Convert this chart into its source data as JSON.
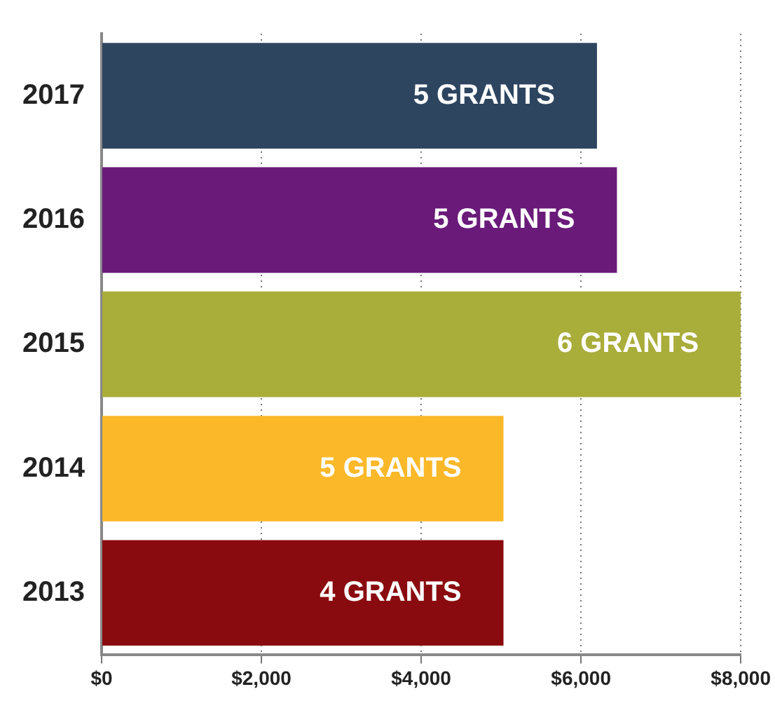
{
  "chart_data": {
    "type": "bar",
    "orientation": "horizontal",
    "categories": [
      "2017",
      "2016",
      "2015",
      "2014",
      "2013"
    ],
    "values": [
      6200,
      6450,
      8000,
      5030,
      5030
    ],
    "colors": [
      "#2e4560",
      "#6a1b7a",
      "#a9ad3a",
      "#fbb829",
      "#8a0b0f"
    ],
    "annotations": [
      {
        "text": "5 GRANTS",
        "x": 6200,
        "y": "2017"
      },
      {
        "text": "5 GRANTS",
        "x": 6450,
        "y": "2016"
      },
      {
        "text": "6 GRANTS",
        "x": 8000,
        "y": "2015"
      },
      {
        "text": "5 GRANTS",
        "x": 5030,
        "y": "2014"
      },
      {
        "text": "4 GRANTS",
        "x": 5030,
        "y": "2013"
      }
    ],
    "xlim": [
      0,
      8000
    ],
    "xticks": [
      {
        "value": 0,
        "label": "$0"
      },
      {
        "value": 2000,
        "label": "$2,000"
      },
      {
        "value": 4000,
        "label": "$4,000"
      },
      {
        "value": 6000,
        "label": "$6,000"
      },
      {
        "value": 8000,
        "label": "$8,000"
      }
    ],
    "grid": "x",
    "legend": false
  }
}
